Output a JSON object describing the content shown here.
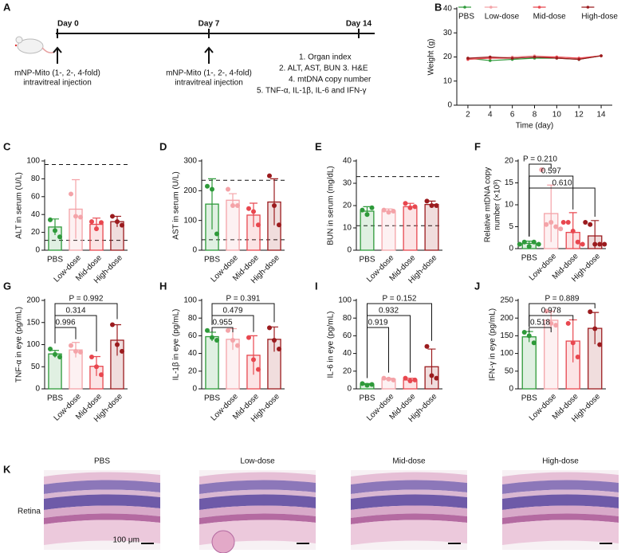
{
  "timeline": {
    "label": "A",
    "days": [
      "Day 0",
      "Day 7",
      "Day 14"
    ],
    "injections": [
      [
        "mNP-Mito (1-, 2-, 4-fold)",
        "intravitreal injection"
      ],
      [
        "mNP-Mito (1-, 2-, 4-fold)",
        "intravitreal injection"
      ]
    ],
    "readouts": [
      "1. Organ index",
      "2. ALT, AST, BUN 3. H&E",
      "4. mtDNA copy number",
      "5. TNF-α, IL-1β, IL-6 and IFN-γ"
    ]
  },
  "chart_data": [
    {
      "label": "B",
      "type": "line",
      "xlabel": "Time (day)",
      "ylabel": "Weight (g)",
      "x": [
        2,
        4,
        6,
        8,
        10,
        12,
        14
      ],
      "xlim": [
        1,
        15
      ],
      "xticks": [
        2,
        4,
        6,
        8,
        10,
        12,
        14
      ],
      "ylim": [
        0,
        40
      ],
      "yticks": [
        0,
        10,
        20,
        30,
        40
      ],
      "series": [
        {
          "name": "PBS",
          "color": "#2e9a3a",
          "values": [
            19.5,
            18.5,
            19,
            19.5,
            19.5,
            19,
            20.5
          ]
        },
        {
          "name": "Low-dose",
          "color": "#f4a3a8",
          "values": [
            19.5,
            19.5,
            20,
            20.5,
            20,
            19.5,
            20.5
          ]
        },
        {
          "name": "Mid-dose",
          "color": "#e8474f",
          "values": [
            19,
            19.5,
            19.5,
            20,
            20,
            19.5,
            20.5
          ]
        },
        {
          "name": "High-dose",
          "color": "#9b1b1e",
          "values": [
            19.5,
            20,
            19.5,
            20,
            19.5,
            19,
            20.5
          ]
        }
      ]
    },
    {
      "label": "C",
      "type": "bar",
      "ylabel": "ALT in serum (U/L)",
      "categories": [
        "PBS",
        "Low-dose",
        "Mid-dose",
        "High-dose"
      ],
      "colors": [
        "#2e9a3a",
        "#f4a3a8",
        "#e8474f",
        "#9b1b1e"
      ],
      "values": [
        26,
        46,
        29,
        32
      ],
      "sd": [
        9,
        33,
        7,
        6
      ],
      "points": [
        [
          34,
          22,
          15
        ],
        [
          63,
          38,
          37
        ],
        [
          32,
          24,
          31
        ],
        [
          38,
          32,
          28
        ]
      ],
      "ylim": [
        0,
        100
      ],
      "yticks": [
        0,
        20,
        40,
        60,
        80,
        100
      ],
      "ref_lines": [
        96,
        11
      ]
    },
    {
      "label": "D",
      "type": "bar",
      "ylabel": "AST in serum (U/L)",
      "categories": [
        "PBS",
        "Low-dose",
        "Mid-dose",
        "High-dose"
      ],
      "colors": [
        "#2e9a3a",
        "#f4a3a8",
        "#e8474f",
        "#9b1b1e"
      ],
      "values": [
        155,
        168,
        118,
        162
      ],
      "sd": [
        85,
        22,
        40,
        78
      ],
      "points": [
        [
          215,
          205,
          55
        ],
        [
          205,
          150,
          150
        ],
        [
          140,
          130,
          85
        ],
        [
          250,
          150,
          85
        ]
      ],
      "ylim": [
        0,
        300
      ],
      "yticks": [
        0,
        100,
        200,
        300
      ],
      "ref_lines": [
        235,
        35
      ]
    },
    {
      "label": "E",
      "type": "bar",
      "ylabel": "BUN in serum (mg/dL)",
      "categories": [
        "PBS",
        "Low-dose",
        "Mid-dose",
        "High-dose"
      ],
      "colors": [
        "#2e9a3a",
        "#f4a3a8",
        "#e8474f",
        "#9b1b1e"
      ],
      "values": [
        17.5,
        17.5,
        19.5,
        20.5
      ],
      "sd": [
        2,
        1,
        1.5,
        1.5
      ],
      "points": [
        [
          18,
          16,
          19
        ],
        [
          18,
          17,
          17.5
        ],
        [
          21,
          19,
          19.5
        ],
        [
          22,
          20,
          20
        ]
      ],
      "ylim": [
        0,
        40
      ],
      "yticks": [
        0,
        10,
        20,
        30,
        40
      ],
      "ref_lines": [
        33,
        11
      ]
    },
    {
      "label": "F",
      "type": "bar",
      "ylabel": [
        "Relative mtDNA copy",
        "number (×10³)"
      ],
      "categories": [
        "PBS",
        "Low-dose",
        "Mid-dose",
        "High-dose"
      ],
      "colors": [
        "#2e9a3a",
        "#f4a3a8",
        "#e8474f",
        "#9b1b1e"
      ],
      "values": [
        1.2,
        8,
        3.7,
        2.9
      ],
      "sd": [
        0.5,
        6.5,
        4.5,
        3.5
      ],
      "points": [
        [
          1,
          1.5,
          0.5,
          1.5,
          1
        ],
        [
          18,
          5.5,
          6,
          5,
          4.5
        ],
        [
          6,
          6,
          4,
          1.5,
          1
        ],
        [
          6,
          5.5,
          1,
          1,
          1
        ]
      ],
      "ylim": [
        0,
        20
      ],
      "yticks": [
        0,
        5,
        10,
        15,
        20
      ],
      "comparisons": [
        {
          "label": "P = 0.210",
          "vs": "Low-dose"
        },
        {
          "label": "0.597",
          "vs": "Mid-dose"
        },
        {
          "label": "0.610",
          "vs": "High-dose"
        }
      ]
    },
    {
      "label": "G",
      "type": "bar",
      "ylabel": "TNF-α in eye (pg/mL)",
      "categories": [
        "PBS",
        "Low-dose",
        "Mid-dose",
        "High-dose"
      ],
      "colors": [
        "#2e9a3a",
        "#f4a3a8",
        "#e8474f",
        "#9b1b1e"
      ],
      "values": [
        79,
        88,
        51,
        110
      ],
      "sd": [
        8,
        17,
        22,
        35
      ],
      "points": [
        [
          90,
          78,
          72
        ],
        [
          98,
          85,
          83
        ],
        [
          72,
          50,
          32
        ],
        [
          145,
          100,
          85
        ]
      ],
      "ylim": [
        0,
        200
      ],
      "yticks": [
        0,
        50,
        100,
        150,
        200
      ],
      "comparisons": [
        {
          "label": "P = 0.992",
          "vs": "High-dose"
        },
        {
          "label": "0.314",
          "vs": "Mid-dose"
        },
        {
          "label": "0.996",
          "vs": "Low-dose"
        }
      ]
    },
    {
      "label": "H",
      "type": "bar",
      "ylabel": "IL-1β in eye (pg/mL)",
      "categories": [
        "PBS",
        "Low-dose",
        "Mid-dose",
        "High-dose"
      ],
      "colors": [
        "#2e9a3a",
        "#f4a3a8",
        "#e8474f",
        "#9b1b1e"
      ],
      "values": [
        59,
        56,
        38,
        56
      ],
      "sd": [
        5,
        12,
        22,
        14
      ],
      "points": [
        [
          66,
          58,
          55
        ],
        [
          66,
          55,
          49
        ],
        [
          58,
          33,
          22
        ],
        [
          69,
          55,
          45
        ]
      ],
      "ylim": [
        0,
        100
      ],
      "yticks": [
        0,
        20,
        40,
        60,
        80,
        100
      ],
      "comparisons": [
        {
          "label": "P = 0.391",
          "vs": "High-dose"
        },
        {
          "label": "0.479",
          "vs": "Mid-dose"
        },
        {
          "label": "0.955",
          "vs": "Low-dose"
        }
      ]
    },
    {
      "label": "I",
      "type": "bar",
      "ylabel": "IL-6 in eye (pg/mL)",
      "categories": [
        "PBS",
        "Low-dose",
        "Mid-dose",
        "High-dose"
      ],
      "colors": [
        "#2e9a3a",
        "#f4a3a8",
        "#e8474f",
        "#9b1b1e"
      ],
      "values": [
        5,
        11,
        10,
        25
      ],
      "sd": [
        1,
        1,
        2,
        20
      ],
      "points": [
        [
          6,
          4,
          5
        ],
        [
          12,
          11,
          10
        ],
        [
          12,
          9,
          10
        ],
        [
          48,
          15,
          12
        ]
      ],
      "ylim": [
        0,
        100
      ],
      "yticks": [
        0,
        20,
        40,
        60,
        80,
        100
      ],
      "comparisons": [
        {
          "label": "P = 0.152",
          "vs": "High-dose"
        },
        {
          "label": "0.932",
          "vs": "Mid-dose"
        },
        {
          "label": "0.919",
          "vs": "Low-dose"
        }
      ]
    },
    {
      "label": "J",
      "type": "bar",
      "ylabel": "IFN-γ in eye (pg/mL)",
      "categories": [
        "PBS",
        "Low-dose",
        "Mid-dose",
        "High-dose"
      ],
      "colors": [
        "#2e9a3a",
        "#f4a3a8",
        "#e8474f",
        "#9b1b1e"
      ],
      "values": [
        147,
        194,
        135,
        171
      ],
      "sd": [
        15,
        25,
        60,
        45
      ],
      "points": [
        [
          160,
          150,
          130
        ],
        [
          220,
          185,
          180
        ],
        [
          185,
          130,
          90
        ],
        [
          218,
          170,
          125
        ]
      ],
      "ylim": [
        0,
        250
      ],
      "yticks": [
        0,
        50,
        100,
        150,
        200,
        250
      ],
      "comparisons": [
        {
          "label": "P = 0.889",
          "vs": "High-dose"
        },
        {
          "label": "0.978",
          "vs": "Mid-dose"
        },
        {
          "label": "0.518",
          "vs": "Low-dose"
        }
      ]
    }
  ],
  "histology": {
    "label": "K",
    "columns": [
      "PBS",
      "Low-dose",
      "Mid-dose",
      "High-dose"
    ],
    "row": "Retina",
    "scale_bar": "100 μm"
  }
}
